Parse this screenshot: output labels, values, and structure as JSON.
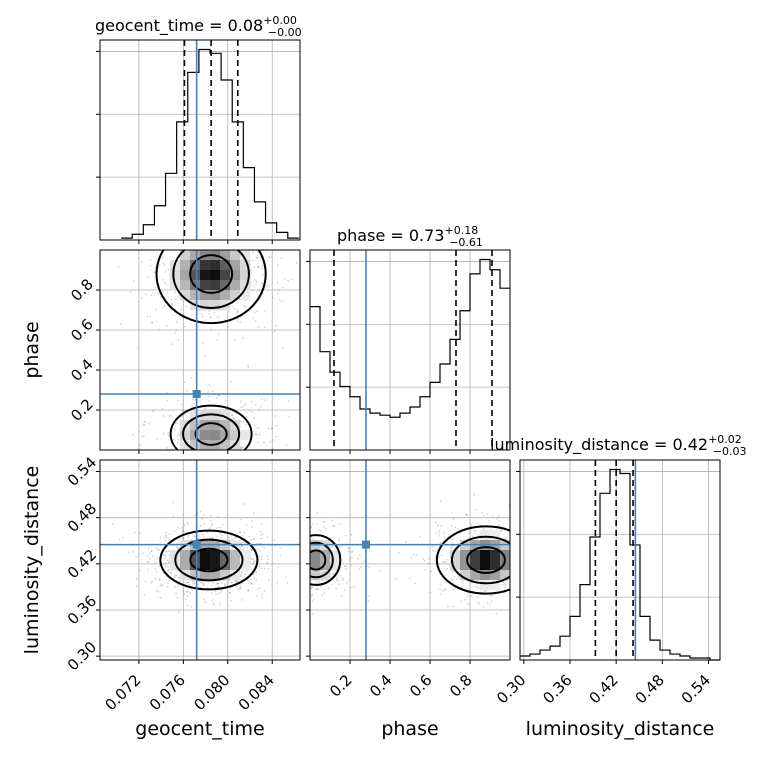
{
  "chart_data": {
    "type": "corner",
    "parameters": [
      {
        "name": "geocent_time",
        "title": {
          "prefix": "geocent_time = 0.08",
          "upper": "+0.00",
          "lower": "−0.00"
        },
        "range": [
          0.0685,
          0.0865
        ],
        "ticks": [
          "0.072",
          "0.076",
          "0.080",
          "0.084"
        ],
        "tick_values": [
          0.072,
          0.076,
          0.08,
          0.084
        ],
        "median": 0.0785,
        "quantiles": [
          0.0761,
          0.0785,
          0.0809
        ],
        "truth": 0.0772,
        "histogram": {
          "bin_edges": [
            0.0704,
            0.0714,
            0.0724,
            0.0734,
            0.0744,
            0.0754,
            0.0764,
            0.0774,
            0.0784,
            0.0794,
            0.0804,
            0.0814,
            0.0824,
            0.0834,
            0.0844,
            0.0854,
            0.0864
          ],
          "counts": [
            1,
            3,
            8,
            18,
            35,
            62,
            88,
            100,
            98,
            84,
            62,
            38,
            20,
            9,
            4,
            1
          ]
        }
      },
      {
        "name": "phase",
        "title": {
          "prefix": "phase = 0.73",
          "upper": "+0.18",
          "lower": "−0.61"
        },
        "range": [
          0.0,
          1.0
        ],
        "ticks": [
          "0.2",
          "0.4",
          "0.6",
          "0.8"
        ],
        "tick_values": [
          0.2,
          0.4,
          0.6,
          0.8
        ],
        "quantiles": [
          0.12,
          0.73,
          0.91
        ],
        "truth": 0.28,
        "histogram": {
          "bin_edges": [
            0.0,
            0.05,
            0.1,
            0.15,
            0.2,
            0.25,
            0.3,
            0.35,
            0.4,
            0.45,
            0.5,
            0.55,
            0.6,
            0.65,
            0.7,
            0.75,
            0.8,
            0.85,
            0.9,
            0.95,
            1.0
          ],
          "counts": [
            70,
            48,
            38,
            31,
            26,
            20,
            18,
            17,
            16,
            18,
            21,
            26,
            33,
            42,
            54,
            68,
            86,
            93,
            88,
            79
          ]
        }
      },
      {
        "name": "luminosity_distance",
        "title": {
          "prefix": "luminosity_distance = 0.42",
          "upper": "+0.02",
          "lower": "−0.03"
        },
        "range": [
          0.295,
          0.555
        ],
        "ticks": [
          "0.30",
          "0.36",
          "0.42",
          "0.48",
          "0.54"
        ],
        "tick_values": [
          0.3,
          0.36,
          0.42,
          0.48,
          0.54
        ],
        "quantiles": [
          0.393,
          0.42,
          0.442
        ],
        "truth": 0.445,
        "histogram": {
          "bin_edges": [
            0.295,
            0.308,
            0.321,
            0.334,
            0.347,
            0.36,
            0.373,
            0.386,
            0.399,
            0.412,
            0.425,
            0.438,
            0.451,
            0.464,
            0.477,
            0.49,
            0.503,
            0.516,
            0.529,
            0.542,
            0.555
          ],
          "counts": [
            2,
            3,
            5,
            7,
            12,
            22,
            38,
            62,
            84,
            96,
            94,
            58,
            22,
            10,
            5,
            3,
            2,
            1,
            1,
            0
          ]
        }
      }
    ],
    "pairs": [
      {
        "x": "geocent_time",
        "y": "phase",
        "truth": [
          0.0772,
          0.28
        ],
        "density_peaks": [
          {
            "cx": 0.0785,
            "cy": 0.88,
            "sx": 0.0018,
            "sy": 0.09,
            "w": 1.0
          },
          {
            "cx": 0.0785,
            "cy": 0.08,
            "sx": 0.0018,
            "sy": 0.07,
            "w": 0.55
          }
        ]
      },
      {
        "x": "geocent_time",
        "y": "luminosity_distance",
        "truth": [
          0.0772,
          0.445
        ],
        "density_peaks": [
          {
            "cx": 0.0783,
            "cy": 0.425,
            "sx": 0.0016,
            "sy": 0.014,
            "w": 1.0
          }
        ]
      },
      {
        "x": "phase",
        "y": "luminosity_distance",
        "truth": [
          0.28,
          0.445
        ],
        "density_peaks": [
          {
            "cx": 0.88,
            "cy": 0.425,
            "sx": 0.09,
            "sy": 0.016,
            "w": 1.0
          },
          {
            "cx": 0.03,
            "cy": 0.425,
            "sx": 0.06,
            "sy": 0.016,
            "w": 0.55
          }
        ]
      }
    ],
    "grid": true,
    "truth_color": "#4682b4"
  }
}
